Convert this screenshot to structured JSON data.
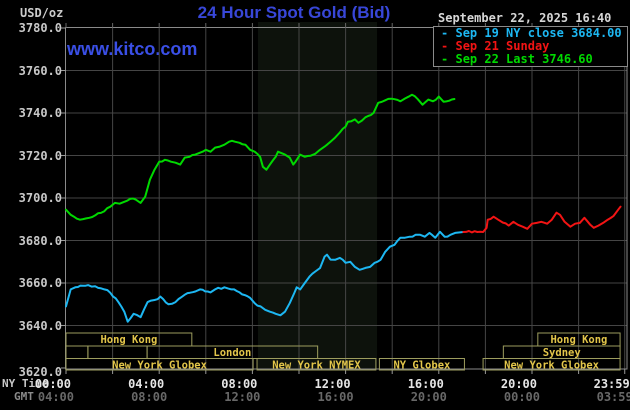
{
  "header": {
    "title": "24 Hour Spot Gold (Bid)",
    "timestamp": "September 22, 2025 16:40",
    "watermark": "www.kitco.com"
  },
  "y_axis": {
    "unit": "USD/oz",
    "tick_labels": [
      "3780.0",
      "3760.0",
      "3740.0",
      "3720.0",
      "3700.0",
      "3680.0",
      "3660.0",
      "3640.0",
      "3620.0"
    ]
  },
  "x_axis": {
    "ny_label": "NY Time",
    "gmt_label": "GMT",
    "ticks": [
      {
        "hour": 0,
        "ny": "00:00",
        "gmt": "04:00"
      },
      {
        "hour": 4,
        "ny": "04:00",
        "gmt": "08:00"
      },
      {
        "hour": 8,
        "ny": "08:00",
        "gmt": "12:00"
      },
      {
        "hour": 12,
        "ny": "12:00",
        "gmt": "16:00"
      },
      {
        "hour": 16,
        "ny": "16:00",
        "gmt": "20:00"
      },
      {
        "hour": 20,
        "ny": "20:00",
        "gmt": "00:00"
      },
      {
        "hour": 23.98,
        "ny": "23:59",
        "gmt": "03:59"
      }
    ]
  },
  "legend": {
    "items": [
      {
        "dash": "-",
        "text": "Sep 19 NY close 3684.00",
        "color": "#1db7f2"
      },
      {
        "dash": "-",
        "text": "Sep 21 Sunday",
        "color": "#f21414"
      },
      {
        "dash": "-",
        "text": "Sep 22 Last 3746.60",
        "color": "#00d900"
      }
    ]
  },
  "sessions": [
    {
      "row": 1,
      "start": 0,
      "end": 5.4,
      "label": "Hong Kong"
    },
    {
      "row": 1,
      "start": 20.25,
      "end": 23.78,
      "label": "Hong Kong"
    },
    {
      "row": 2,
      "start": 0,
      "end": 0.94,
      "label": ""
    },
    {
      "row": 2,
      "start": 0.94,
      "end": 3.48,
      "label": ""
    },
    {
      "row": 2,
      "start": 3.48,
      "end": 10.8,
      "label": "London"
    },
    {
      "row": 2,
      "start": 18.77,
      "end": 23.78,
      "label": "Sydney"
    },
    {
      "row": 3,
      "start": 0,
      "end": 8.03,
      "label": "New York Globex"
    },
    {
      "row": 3,
      "start": 8.2,
      "end": 13.3,
      "label": "New York NYMEX"
    },
    {
      "row": 3,
      "start": 13.45,
      "end": 17.1,
      "label": "NY Globex"
    },
    {
      "row": 3,
      "start": 17.9,
      "end": 23.78,
      "label": "New York Globex"
    }
  ],
  "colors": {
    "title_blue": "#3847d8",
    "watermark_blue": "#3a4fe6",
    "grid": "#454545",
    "border": "#8a8a8a",
    "tick": "#999999",
    "nymex_band": "#0d120c",
    "session_border": "#9d9d5e",
    "session_text": "#e3c64a",
    "sep19_cyan": "#1db7f2",
    "sep21_red": "#f21414",
    "sep22_green": "#00d900"
  },
  "chart_data": {
    "type": "line",
    "title": "24 Hour Spot Gold (Bid)",
    "xlabel": "NY Time (hours)",
    "ylabel": "USD/oz",
    "xlim": [
      0,
      24
    ],
    "ylim": [
      3620,
      3780
    ],
    "grid": true,
    "legend_position": "top-right",
    "nymex_band": {
      "start_hour": 8.24,
      "end_hour": 13.35
    },
    "series": [
      {
        "name": "Sep 19 NY close 3684.00",
        "color": "#1db7f2",
        "points": [
          [
            0,
            3649.0
          ],
          [
            0.2,
            3657.0
          ],
          [
            0.4,
            3658.0
          ],
          [
            0.95,
            3659.0
          ],
          [
            1.25,
            3658.5
          ],
          [
            1.65,
            3657.0
          ],
          [
            1.9,
            3655.4
          ],
          [
            2.25,
            3651.0
          ],
          [
            2.5,
            3646.5
          ],
          [
            2.65,
            3641.8
          ],
          [
            2.9,
            3645.5
          ],
          [
            3.2,
            3643.9
          ],
          [
            3.5,
            3651.0
          ],
          [
            3.8,
            3652.0
          ],
          [
            4.05,
            3653.6
          ],
          [
            4.4,
            3650.0
          ],
          [
            4.7,
            3651.0
          ],
          [
            5.1,
            3654.5
          ],
          [
            5.55,
            3656.0
          ],
          [
            5.75,
            3657.0
          ],
          [
            6.2,
            3655.6
          ],
          [
            6.4,
            3657.0
          ],
          [
            6.8,
            3658.0
          ],
          [
            7.1,
            3657.0
          ],
          [
            7.45,
            3655.6
          ],
          [
            7.9,
            3653.0
          ],
          [
            8.1,
            3650.5
          ],
          [
            8.35,
            3649.0
          ],
          [
            8.55,
            3647.4
          ],
          [
            8.75,
            3646.5
          ],
          [
            9.0,
            3645.5
          ],
          [
            9.2,
            3644.8
          ],
          [
            9.4,
            3646.5
          ],
          [
            9.6,
            3650.5
          ],
          [
            9.8,
            3655.3
          ],
          [
            9.9,
            3658.0
          ],
          [
            10.05,
            3657.0
          ],
          [
            10.25,
            3660.0
          ],
          [
            10.45,
            3663.0
          ],
          [
            10.7,
            3665.4
          ],
          [
            10.9,
            3667.0
          ],
          [
            11.1,
            3672.4
          ],
          [
            11.2,
            3673.3
          ],
          [
            11.35,
            3671.0
          ],
          [
            11.55,
            3670.9
          ],
          [
            11.75,
            3671.8
          ],
          [
            12.0,
            3669.5
          ],
          [
            12.2,
            3670.0
          ],
          [
            12.4,
            3667.6
          ],
          [
            12.6,
            3666.2
          ],
          [
            12.85,
            3667.1
          ],
          [
            13.05,
            3667.6
          ],
          [
            13.25,
            3669.5
          ],
          [
            13.5,
            3670.9
          ],
          [
            13.7,
            3674.7
          ],
          [
            13.9,
            3677.1
          ],
          [
            14.1,
            3678.0
          ],
          [
            14.35,
            3681.3
          ],
          [
            14.55,
            3681.3
          ],
          [
            14.75,
            3681.8
          ],
          [
            15.0,
            3682.7
          ],
          [
            15.2,
            3682.7
          ],
          [
            15.4,
            3681.8
          ],
          [
            15.6,
            3683.6
          ],
          [
            15.85,
            3681.3
          ],
          [
            16.05,
            3684.1
          ],
          [
            16.25,
            3681.8
          ],
          [
            16.5,
            3682.7
          ],
          [
            16.7,
            3683.6
          ],
          [
            16.9,
            3683.8
          ],
          [
            17.05,
            3684.0
          ]
        ]
      },
      {
        "name": "Sep 21 Sunday",
        "color": "#f21414",
        "points": [
          [
            17.05,
            3684.0
          ],
          [
            17.9,
            3684.0
          ],
          [
            18.05,
            3686.0
          ],
          [
            18.1,
            3689.8
          ],
          [
            18.35,
            3691.2
          ],
          [
            18.55,
            3689.8
          ],
          [
            18.75,
            3688.4
          ],
          [
            19.0,
            3687.0
          ],
          [
            19.2,
            3688.8
          ],
          [
            19.4,
            3687.4
          ],
          [
            19.6,
            3686.5
          ],
          [
            19.8,
            3685.5
          ],
          [
            20.0,
            3687.9
          ],
          [
            20.2,
            3688.3
          ],
          [
            20.4,
            3688.8
          ],
          [
            20.65,
            3687.9
          ],
          [
            20.85,
            3689.8
          ],
          [
            21.05,
            3693.1
          ],
          [
            21.2,
            3692.1
          ],
          [
            21.4,
            3688.8
          ],
          [
            21.65,
            3686.5
          ],
          [
            21.85,
            3687.9
          ],
          [
            22.05,
            3688.3
          ],
          [
            22.25,
            3690.7
          ],
          [
            22.5,
            3687.4
          ],
          [
            22.65,
            3686.0
          ],
          [
            22.85,
            3687.0
          ],
          [
            23.05,
            3688.3
          ],
          [
            23.25,
            3689.8
          ],
          [
            23.5,
            3691.6
          ],
          [
            23.7,
            3694.5
          ],
          [
            23.8,
            3695.9
          ]
        ]
      },
      {
        "name": "Sep 22 Last 3746.60",
        "color": "#00d900",
        "points": [
          [
            0,
            3694.5
          ],
          [
            0.2,
            3692.1
          ],
          [
            0.6,
            3689.8
          ],
          [
            1.0,
            3690.7
          ],
          [
            1.5,
            3693.0
          ],
          [
            1.9,
            3695.9
          ],
          [
            2.1,
            3697.7
          ],
          [
            2.3,
            3697.3
          ],
          [
            2.5,
            3698.2
          ],
          [
            2.75,
            3699.6
          ],
          [
            3.0,
            3699.2
          ],
          [
            3.2,
            3697.7
          ],
          [
            3.4,
            3700.6
          ],
          [
            3.6,
            3708.6
          ],
          [
            3.8,
            3713.3
          ],
          [
            4.0,
            3717.1
          ],
          [
            4.25,
            3718.0
          ],
          [
            4.5,
            3717.1
          ],
          [
            4.7,
            3716.6
          ],
          [
            4.9,
            3715.7
          ],
          [
            5.1,
            3719.0
          ],
          [
            5.3,
            3719.4
          ],
          [
            5.55,
            3720.4
          ],
          [
            5.75,
            3721.3
          ],
          [
            6.0,
            3722.7
          ],
          [
            6.2,
            3721.8
          ],
          [
            6.4,
            3723.7
          ],
          [
            6.6,
            3724.2
          ],
          [
            6.8,
            3725.1
          ],
          [
            7.0,
            3726.5
          ],
          [
            7.25,
            3726.5
          ],
          [
            7.45,
            3726.0
          ],
          [
            7.7,
            3725.1
          ],
          [
            7.9,
            3722.7
          ],
          [
            8.1,
            3721.8
          ],
          [
            8.33,
            3719.4
          ],
          [
            8.45,
            3714.7
          ],
          [
            8.6,
            3713.3
          ],
          [
            8.75,
            3715.7
          ],
          [
            9.0,
            3719.4
          ],
          [
            9.1,
            3721.8
          ],
          [
            9.2,
            3721.3
          ],
          [
            9.4,
            3720.4
          ],
          [
            9.6,
            3719.0
          ],
          [
            9.75,
            3715.7
          ],
          [
            9.85,
            3717.1
          ],
          [
            10.05,
            3720.4
          ],
          [
            10.25,
            3719.4
          ],
          [
            10.5,
            3719.9
          ],
          [
            10.7,
            3720.8
          ],
          [
            10.9,
            3722.7
          ],
          [
            11.1,
            3724.2
          ],
          [
            11.35,
            3726.5
          ],
          [
            11.55,
            3728.4
          ],
          [
            11.75,
            3730.8
          ],
          [
            12.0,
            3733.6
          ],
          [
            12.1,
            3735.9
          ],
          [
            12.4,
            3737.0
          ],
          [
            12.55,
            3735.4
          ],
          [
            12.85,
            3738.0
          ],
          [
            13.2,
            3740.1
          ],
          [
            13.4,
            3744.8
          ],
          [
            13.7,
            3746.0
          ],
          [
            14.1,
            3746.5
          ],
          [
            14.35,
            3745.5
          ],
          [
            14.55,
            3746.8
          ],
          [
            14.85,
            3748.6
          ],
          [
            15.1,
            3746.5
          ],
          [
            15.3,
            3743.9
          ],
          [
            15.55,
            3746.3
          ],
          [
            15.75,
            3745.5
          ],
          [
            16.0,
            3747.7
          ],
          [
            16.2,
            3745.3
          ],
          [
            16.45,
            3745.8
          ],
          [
            16.67,
            3746.6
          ]
        ]
      }
    ]
  }
}
